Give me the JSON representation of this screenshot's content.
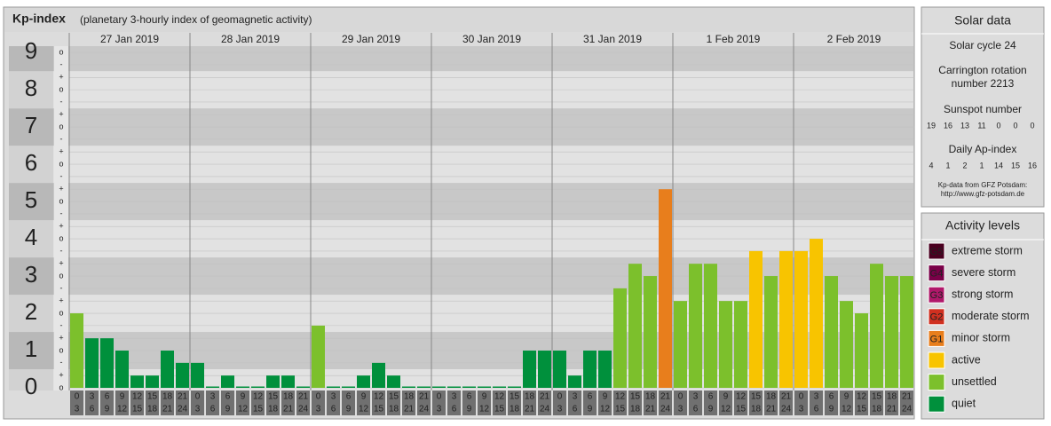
{
  "header": {
    "title": "Kp-index",
    "subtitle": "(planetary 3-hourly index of geomagnetic activity)"
  },
  "chart_data": {
    "type": "bar",
    "days": [
      "27 Jan 2019",
      "28 Jan 2019",
      "29 Jan 2019",
      "30 Jan 2019",
      "31 Jan 2019",
      "1 Feb 2019",
      "2 Feb 2019"
    ],
    "hour_starts": [
      "0",
      "3",
      "6",
      "9",
      "12",
      "15",
      "18",
      "21"
    ],
    "hour_ends": [
      "3",
      "6",
      "9",
      "12",
      "15",
      "18",
      "21",
      "24"
    ],
    "values": [
      2,
      1.33,
      1.33,
      1,
      0.33,
      0.33,
      1,
      0.67,
      0.67,
      0,
      0.33,
      0,
      0,
      0.33,
      0.33,
      0,
      1.67,
      0,
      0,
      0.33,
      0.67,
      0.33,
      0,
      0,
      0,
      0,
      0,
      0,
      0,
      0,
      1,
      1,
      1,
      0.33,
      1,
      1,
      2.67,
      3.33,
      3,
      5.33,
      2.33,
      3.33,
      3.33,
      2.33,
      2.33,
      3.67,
      3,
      3.67,
      3.67,
      4,
      3,
      2.33,
      2,
      3.33,
      3,
      3
    ],
    "colors": [
      "#7cc02c",
      "#00903c",
      "#00903c",
      "#00903c",
      "#00903c",
      "#00903c",
      "#00903c",
      "#00903c",
      "#00903c",
      "#00903c",
      "#00903c",
      "#00903c",
      "#00903c",
      "#00903c",
      "#00903c",
      "#00903c",
      "#7cc02c",
      "#00903c",
      "#00903c",
      "#00903c",
      "#00903c",
      "#00903c",
      "#00903c",
      "#00903c",
      "#00903c",
      "#00903c",
      "#00903c",
      "#00903c",
      "#00903c",
      "#00903c",
      "#00903c",
      "#00903c",
      "#00903c",
      "#00903c",
      "#00903c",
      "#00903c",
      "#7cc02c",
      "#7cc02c",
      "#7cc02c",
      "#e87e1c",
      "#7cc02c",
      "#7cc02c",
      "#7cc02c",
      "#7cc02c",
      "#7cc02c",
      "#f8c400",
      "#7cc02c",
      "#f8c400",
      "#f8c400",
      "#f8c400",
      "#7cc02c",
      "#7cc02c",
      "#7cc02c",
      "#7cc02c",
      "#7cc02c",
      "#7cc02c"
    ],
    "ylim": [
      0,
      9.17
    ],
    "yticks": [
      0,
      1,
      2,
      3,
      4,
      5,
      6,
      7,
      8,
      9
    ],
    "minor_yticks": [
      {
        "value": 0,
        "label": "o"
      },
      {
        "value": 0.33,
        "label": "+"
      },
      {
        "value": 0.67,
        "label": "-"
      },
      {
        "value": 1,
        "label": "o"
      },
      {
        "value": 1.33,
        "label": "+"
      },
      {
        "value": 1.67,
        "label": "-"
      },
      {
        "value": 2,
        "label": "o"
      },
      {
        "value": 2.33,
        "label": "+"
      },
      {
        "value": 2.67,
        "label": "-"
      },
      {
        "value": 3,
        "label": "o"
      },
      {
        "value": 3.33,
        "label": "+"
      },
      {
        "value": 3.67,
        "label": "-"
      },
      {
        "value": 4,
        "label": "o"
      },
      {
        "value": 4.33,
        "label": "+"
      },
      {
        "value": 4.67,
        "label": "-"
      },
      {
        "value": 5,
        "label": "o"
      },
      {
        "value": 5.33,
        "label": "+"
      },
      {
        "value": 5.67,
        "label": "-"
      },
      {
        "value": 6,
        "label": "o"
      },
      {
        "value": 6.33,
        "label": "+"
      },
      {
        "value": 6.67,
        "label": "-"
      },
      {
        "value": 7,
        "label": "o"
      },
      {
        "value": 7.33,
        "label": "+"
      },
      {
        "value": 7.67,
        "label": "-"
      },
      {
        "value": 8,
        "label": "o"
      },
      {
        "value": 8.33,
        "label": "+"
      },
      {
        "value": 8.67,
        "label": "-"
      },
      {
        "value": 9,
        "label": "o"
      }
    ],
    "grid": true
  },
  "solar_data": {
    "title": "Solar data",
    "cycle": "Solar cycle 24",
    "carrington": [
      "Carrington rotation",
      "number 2213"
    ],
    "sunspot_title": "Sunspot number",
    "sunspot": [
      19,
      16,
      13,
      11,
      0,
      0,
      0
    ],
    "ap_title": "Daily Ap-index",
    "ap": [
      4,
      1,
      2,
      1,
      14,
      15,
      16
    ],
    "source": [
      "Kp-data from GFZ Potsdam:",
      "http://www.gfz-potsdam.de"
    ]
  },
  "activity_levels": {
    "title": "Activity levels",
    "items": [
      {
        "badge": "G5",
        "name": "extreme storm",
        "color": "#4a0020"
      },
      {
        "badge": "G4",
        "name": "severe storm",
        "color": "#7a0048"
      },
      {
        "badge": "G3",
        "name": "strong storm",
        "color": "#b0186a"
      },
      {
        "badge": "G2",
        "name": "moderate storm",
        "color": "#d03020"
      },
      {
        "badge": "G1",
        "name": "minor storm",
        "color": "#e87e1c"
      },
      {
        "badge": null,
        "name": "active",
        "color": "#f8c400"
      },
      {
        "badge": null,
        "name": "unsettled",
        "color": "#7cc02c"
      },
      {
        "badge": null,
        "name": "quiet",
        "color": "#00903c"
      }
    ]
  }
}
